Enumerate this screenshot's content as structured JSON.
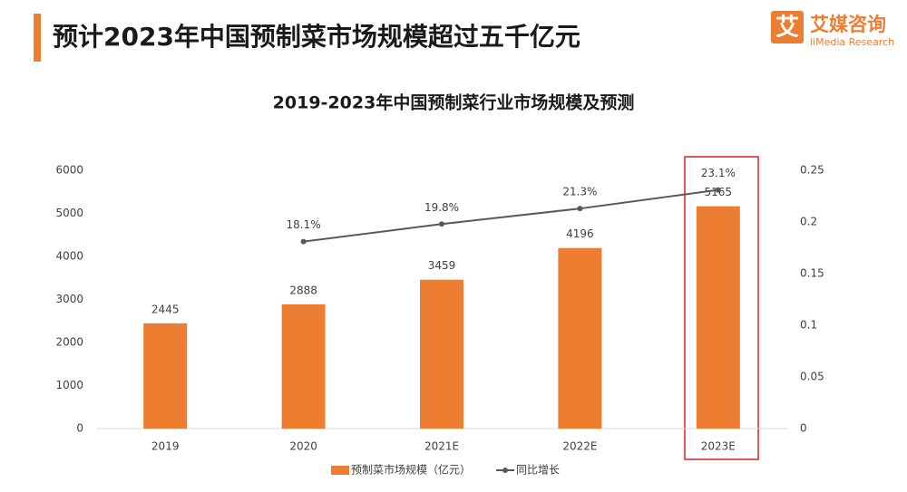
{
  "header": {
    "title": "预计2023年中国预制菜市场规模超过五千亿元",
    "logo_char": "艾",
    "brand": "艾媒咨询",
    "brand_sub": "iiMedia Research"
  },
  "chart_data": {
    "type": "bar",
    "title": "2019-2023年中国预制菜行业市场规模及预测",
    "categories": [
      "2019",
      "2020",
      "2021E",
      "2022E",
      "2023E"
    ],
    "series": [
      {
        "name": "预制菜市场规模（亿元）",
        "type": "bar",
        "color": "#ed7d31",
        "values": [
          2445,
          2888,
          3459,
          4196,
          5165
        ]
      },
      {
        "name": "同比增长",
        "type": "line",
        "axis": "y2",
        "color": "#595959",
        "values": [
          null,
          0.181,
          0.198,
          0.213,
          0.231
        ],
        "value_labels": [
          null,
          "18.1%",
          "19.8%",
          "21.3%",
          "23.1%"
        ]
      }
    ],
    "ylim": [
      0,
      6000
    ],
    "yticks": [
      0,
      1000,
      2000,
      3000,
      4000,
      5000,
      6000
    ],
    "y2lim": [
      0,
      0.25
    ],
    "y2ticks": [
      0,
      0.05,
      0.1,
      0.15,
      0.2,
      0.25
    ],
    "legend": "bottom",
    "grid": false
  }
}
